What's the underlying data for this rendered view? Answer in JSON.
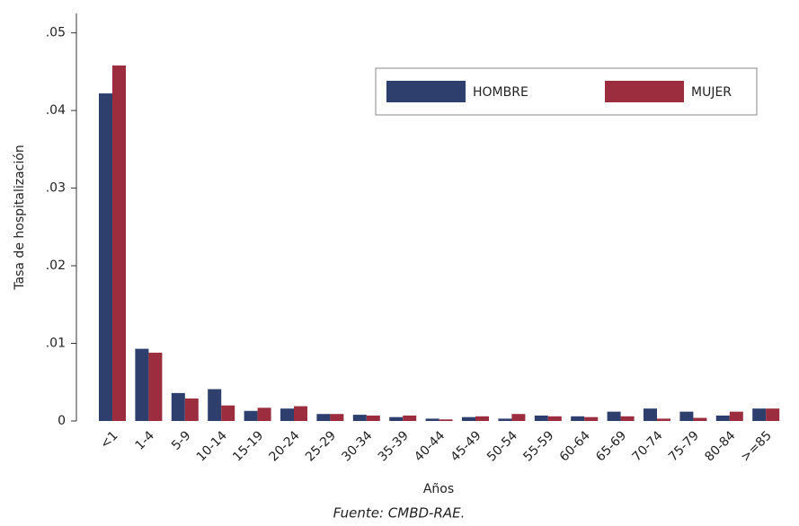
{
  "chart_data": {
    "type": "bar",
    "ylabel": "Tasa de hospitalización",
    "xlabel": "Años",
    "source": "Fuente: CMBD-RAE.",
    "categories": [
      "<1",
      "1-4",
      "5-9",
      "10-14",
      "15-19",
      "20-24",
      "25-29",
      "30-34",
      "35-39",
      "40-44",
      "45-49",
      "50-54",
      "55-59",
      "60-64",
      "65-69",
      "70-74",
      "75-79",
      "80-84",
      ">=85"
    ],
    "series": [
      {
        "name": "HOMBRE",
        "color": "#2e3f6e",
        "values": [
          0.0422,
          0.0093,
          0.0036,
          0.0041,
          0.0013,
          0.0016,
          0.0009,
          0.0008,
          0.0005,
          0.0003,
          0.0005,
          0.0003,
          0.0007,
          0.0006,
          0.0012,
          0.0016,
          0.0012,
          0.0007,
          0.0016
        ]
      },
      {
        "name": "MUJER",
        "color": "#9b2d3e",
        "values": [
          0.0458,
          0.0088,
          0.0029,
          0.002,
          0.0017,
          0.0019,
          0.0009,
          0.0007,
          0.0007,
          0.0002,
          0.0006,
          0.0009,
          0.0006,
          0.0005,
          0.0006,
          0.0003,
          0.0004,
          0.0012,
          0.0016
        ]
      }
    ],
    "ylim": [
      0,
      0.0525
    ],
    "yticks": [
      0,
      {
        "value": 0.01,
        "label": ".01"
      },
      {
        "value": 0.02,
        "label": ".02"
      },
      {
        "value": 0.03,
        "label": ".03"
      },
      {
        "value": 0.04,
        "label": ".04"
      },
      {
        "value": 0.05,
        "label": ".05"
      }
    ],
    "grid": false,
    "legend": "top-right"
  }
}
